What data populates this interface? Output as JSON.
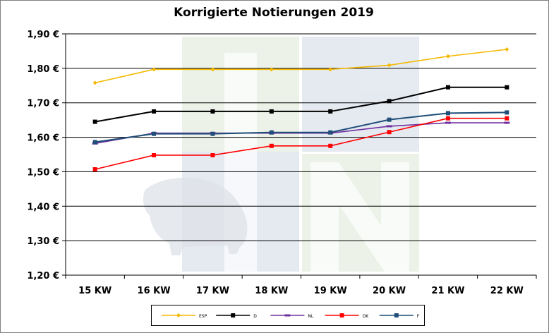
{
  "chart_data": {
    "type": "line",
    "title": "Korrigierte Notierungen 2019",
    "xlabel": "",
    "ylabel": "",
    "categories": [
      "15 KW",
      "16 KW",
      "17 KW",
      "18 KW",
      "19 KW",
      "20 KW",
      "21 KW",
      "22 KW"
    ],
    "ylim": [
      1.2,
      1.9
    ],
    "yticks": [
      "1,20 €",
      "1,30 €",
      "1,40 €",
      "1,50 €",
      "1,60 €",
      "1,70 €",
      "1,80 €",
      "1,90 €"
    ],
    "grid": true,
    "legend_position": "bottom",
    "series": [
      {
        "name": "ESP",
        "color": "#f5b800",
        "marker": "diamond",
        "values": [
          1.758,
          1.797,
          1.797,
          1.797,
          1.797,
          1.809,
          1.835,
          1.855
        ]
      },
      {
        "name": "D",
        "color": "#000000",
        "marker": "square",
        "values": [
          1.645,
          1.675,
          1.675,
          1.675,
          1.675,
          1.705,
          1.745,
          1.745
        ]
      },
      {
        "name": "NL",
        "color": "#7030a0",
        "marker": "dash",
        "values": [
          1.582,
          1.612,
          1.612,
          1.612,
          1.612,
          1.632,
          1.642,
          1.642
        ]
      },
      {
        "name": "DK",
        "color": "#ff0000",
        "marker": "square",
        "values": [
          1.507,
          1.548,
          1.548,
          1.575,
          1.575,
          1.615,
          1.655,
          1.655
        ]
      },
      {
        "name": "F",
        "color": "#1f4e79",
        "marker": "square",
        "values": [
          1.586,
          1.61,
          1.61,
          1.614,
          1.614,
          1.651,
          1.67,
          1.672
        ]
      }
    ]
  }
}
